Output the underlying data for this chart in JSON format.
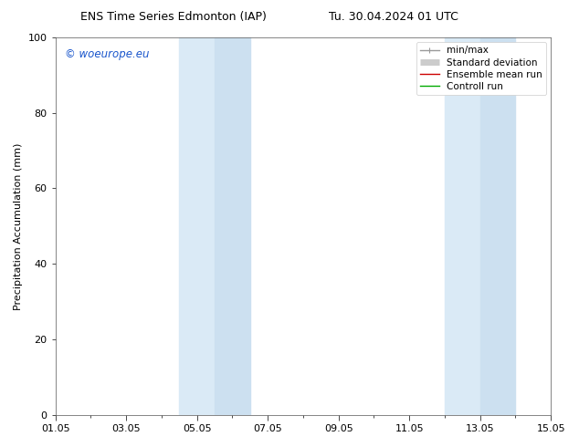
{
  "title_left": "ENS Time Series Edmonton (IAP)",
  "title_right": "Tu. 30.04.2024 01 UTC",
  "ylabel": "Precipitation Accumulation (mm)",
  "ylim": [
    0,
    100
  ],
  "xlim": [
    0,
    14
  ],
  "xtick_positions": [
    0,
    2,
    4,
    6,
    8,
    10,
    12,
    14
  ],
  "xtick_labels": [
    "01.05",
    "03.05",
    "05.05",
    "07.05",
    "09.05",
    "11.05",
    "13.05",
    "15.05"
  ],
  "ytick_positions": [
    0,
    20,
    40,
    60,
    80,
    100
  ],
  "ytick_labels": [
    "0",
    "20",
    "40",
    "60",
    "80",
    "100"
  ],
  "shaded_regions": [
    {
      "xmin": 3.5,
      "xmax": 4.5,
      "color": "#daeaf6"
    },
    {
      "xmin": 4.5,
      "xmax": 5.5,
      "color": "#cce0f0"
    },
    {
      "xmin": 11.0,
      "xmax": 12.0,
      "color": "#daeaf6"
    },
    {
      "xmin": 12.0,
      "xmax": 13.0,
      "color": "#cce0f0"
    }
  ],
  "watermark": "© woeurope.eu",
  "watermark_color": "#1a56cc",
  "legend_items": [
    {
      "label": "min/max",
      "color": "#999999",
      "lw": 1.0
    },
    {
      "label": "Standard deviation",
      "color": "#cccccc",
      "lw": 5
    },
    {
      "label": "Ensemble mean run",
      "color": "#cc0000",
      "lw": 1.0
    },
    {
      "label": "Controll run",
      "color": "#00aa00",
      "lw": 1.0
    }
  ],
  "bg_color": "#ffffff",
  "title_fontsize": 9,
  "tick_fontsize": 8,
  "ylabel_fontsize": 8,
  "legend_fontsize": 7.5
}
